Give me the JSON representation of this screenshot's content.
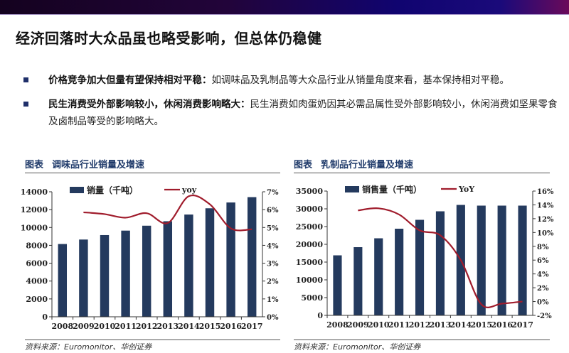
{
  "header": {
    "title": "经济回落时大众品虽也略受影响，但总体仍稳健"
  },
  "bullets": [
    {
      "bold": "价格竞争加大但量有望保持相对平稳：",
      "text": "如调味品及乳制品等大众品行业从销量角度来看，基本保持相对平稳。"
    },
    {
      "bold": "民生消费受外部影响较小，休闲消费影响略大：",
      "text": "民生消费如肉蛋奶因其必需品属性受外部影响较小，休闲消费如坚果零食及卤制品等受的影响略大。"
    }
  ],
  "colors": {
    "bar": "#243a5e",
    "line": "#a01c2c",
    "bullet": "#1f2f6a"
  },
  "charts": [
    {
      "label": "图表",
      "title": "调味品行业销量及增速",
      "source": "资料来源：Euromonitor、华创证券"
    },
    {
      "label": "图表",
      "title": "乳制品行业销量及增速",
      "source": "资料来源：Euromonitor、华创证券"
    }
  ],
  "chart_data": [
    {
      "type": "bar+line",
      "title": "调味品行业销量及增速",
      "categories": [
        "2008",
        "2009",
        "2010",
        "2011",
        "2012",
        "2013",
        "2014",
        "2015",
        "2016",
        "2017"
      ],
      "series": [
        {
          "name": "销量（千吨）",
          "type": "bar",
          "axis": "left",
          "values": [
            8150,
            8650,
            9150,
            9650,
            10200,
            10700,
            11450,
            12150,
            12800,
            13400
          ]
        },
        {
          "name": "yoy",
          "type": "line",
          "axis": "right",
          "values": [
            null,
            5.85,
            5.75,
            5.55,
            5.8,
            5.25,
            6.75,
            6.3,
            4.95,
            4.9
          ]
        }
      ],
      "ylim": [
        0,
        14000
      ],
      "yticks": [
        "0",
        "2000",
        "4000",
        "6000",
        "8000",
        "10000",
        "12000",
        "14000"
      ],
      "y2lim": [
        0,
        7
      ],
      "y2ticks": [
        "0%",
        "1%",
        "2%",
        "3%",
        "4%",
        "5%",
        "6%",
        "7%"
      ],
      "legend": "top"
    },
    {
      "type": "bar+line",
      "title": "乳制品行业销量及增速",
      "categories": [
        "2008",
        "2009",
        "2010",
        "2011",
        "2012",
        "2013",
        "2014",
        "2015",
        "2016",
        "2017"
      ],
      "series": [
        {
          "name": "销售量（千吨）",
          "type": "bar",
          "axis": "left",
          "values": [
            16900,
            19200,
            21700,
            24400,
            26900,
            29300,
            31100,
            30900,
            30900,
            30900
          ]
        },
        {
          "name": "YoY",
          "type": "line",
          "axis": "right",
          "values": [
            null,
            13.2,
            13.5,
            12.6,
            10.3,
            9.6,
            6.0,
            -0.4,
            -0.3,
            0.0
          ]
        }
      ],
      "ylim": [
        0,
        35000
      ],
      "yticks": [
        "0",
        "5000",
        "10000",
        "15000",
        "20000",
        "25000",
        "30000",
        "35000"
      ],
      "y2lim": [
        -2,
        16
      ],
      "y2ticks": [
        "-2%",
        "0%",
        "2%",
        "4%",
        "6%",
        "8%",
        "10%",
        "12%",
        "14%",
        "16%"
      ],
      "legend": "top"
    }
  ]
}
